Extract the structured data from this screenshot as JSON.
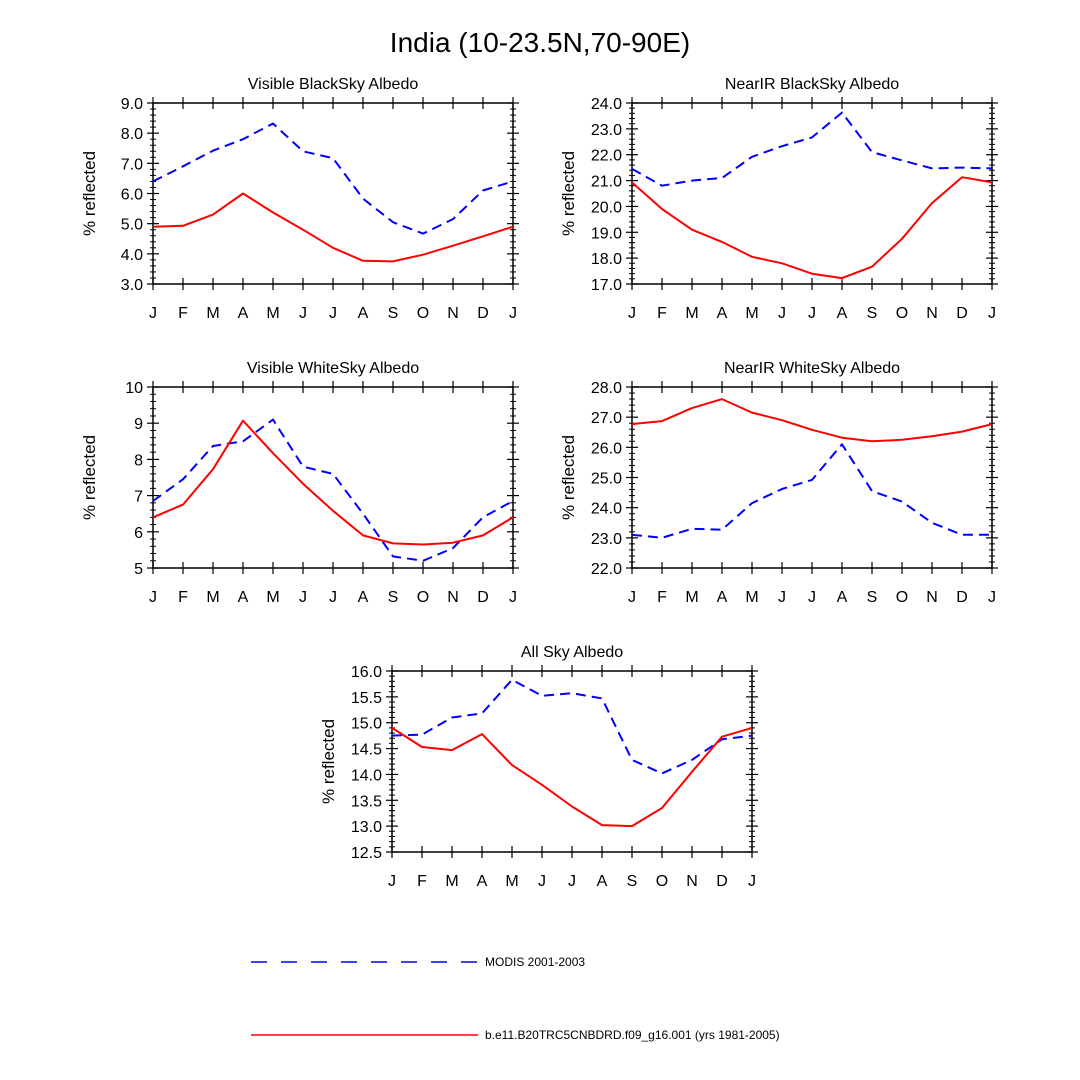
{
  "figure_title": "India (10-23.5N,70-90E)",
  "legend": [
    {
      "label": "MODIS 2001-2003",
      "color": "#0000ff",
      "style": "dashed"
    },
    {
      "label": "b.e11.B20TRC5CNBDRD.f09_g16.001 (yrs 1981-2005)",
      "color": "#ff0000",
      "style": "solid"
    }
  ],
  "chart_data": [
    {
      "type": "line",
      "title": "Visible BlackSky Albedo",
      "ylabel": "% reflected",
      "xlabel": "",
      "categories": [
        "J",
        "F",
        "M",
        "A",
        "M",
        "J",
        "J",
        "A",
        "S",
        "O",
        "N",
        "D",
        "J"
      ],
      "ylim": [
        3.0,
        9.0
      ],
      "yticks": [
        "3.0",
        "4.0",
        "5.0",
        "6.0",
        "7.0",
        "8.0",
        "9.0"
      ],
      "series": [
        {
          "name": "MODIS 2001-2003",
          "color": "#0000ff",
          "style": "dashed",
          "values": [
            6.4,
            6.9,
            7.42,
            7.8,
            8.32,
            7.4,
            7.17,
            5.83,
            5.05,
            4.67,
            5.15,
            6.1,
            6.4
          ]
        },
        {
          "name": "b.e11.B20TRC5CNBDRD.f09_g16.001 (yrs 1981-2005)",
          "color": "#ff0000",
          "style": "solid",
          "values": [
            4.9,
            4.93,
            5.3,
            6.0,
            5.37,
            4.8,
            4.2,
            3.77,
            3.75,
            3.97,
            4.27,
            4.58,
            4.9
          ]
        }
      ]
    },
    {
      "type": "line",
      "title": "NearIR BlackSky Albedo",
      "ylabel": "% reflected",
      "xlabel": "",
      "categories": [
        "J",
        "F",
        "M",
        "A",
        "M",
        "J",
        "J",
        "A",
        "S",
        "O",
        "N",
        "D",
        "J"
      ],
      "ylim": [
        17.0,
        24.0
      ],
      "yticks": [
        "17.0",
        "18.0",
        "19.0",
        "20.0",
        "21.0",
        "22.0",
        "23.0",
        "24.0"
      ],
      "series": [
        {
          "name": "MODIS 2001-2003",
          "color": "#0000ff",
          "style": "dashed",
          "values": [
            21.45,
            20.8,
            21.0,
            21.1,
            21.92,
            22.33,
            22.67,
            23.63,
            22.1,
            21.78,
            21.47,
            21.5,
            21.47
          ]
        },
        {
          "name": "b.e11.B20TRC5CNBDRD.f09_g16.001 (yrs 1981-2005)",
          "color": "#ff0000",
          "style": "solid",
          "values": [
            20.93,
            19.9,
            19.1,
            18.63,
            18.05,
            17.8,
            17.4,
            17.23,
            17.67,
            18.75,
            20.13,
            21.13,
            20.93
          ]
        }
      ]
    },
    {
      "type": "line",
      "title": "Visible WhiteSky Albedo",
      "ylabel": "% reflected",
      "xlabel": "",
      "categories": [
        "J",
        "F",
        "M",
        "A",
        "M",
        "J",
        "J",
        "A",
        "S",
        "O",
        "N",
        "D",
        "J"
      ],
      "ylim": [
        5,
        10
      ],
      "yticks": [
        "5",
        "6",
        "7",
        "8",
        "9",
        "10"
      ],
      "series": [
        {
          "name": "MODIS 2001-2003",
          "color": "#0000ff",
          "style": "dashed",
          "values": [
            6.85,
            7.45,
            8.37,
            8.5,
            9.1,
            7.8,
            7.6,
            6.5,
            5.32,
            5.2,
            5.55,
            6.4,
            6.85
          ]
        },
        {
          "name": "b.e11.B20TRC5CNBDRD.f09_g16.001 (yrs 1981-2005)",
          "color": "#ff0000",
          "style": "solid",
          "values": [
            6.4,
            6.75,
            7.73,
            9.07,
            8.17,
            7.33,
            6.58,
            5.9,
            5.68,
            5.65,
            5.7,
            5.9,
            6.4
          ]
        }
      ]
    },
    {
      "type": "line",
      "title": "NearIR WhiteSky Albedo",
      "ylabel": "% reflected",
      "xlabel": "",
      "categories": [
        "J",
        "F",
        "M",
        "A",
        "M",
        "J",
        "J",
        "A",
        "S",
        "O",
        "N",
        "D",
        "J"
      ],
      "ylim": [
        22.0,
        28.0
      ],
      "yticks": [
        "22.0",
        "23.0",
        "24.0",
        "25.0",
        "26.0",
        "27.0",
        "28.0"
      ],
      "series": [
        {
          "name": "MODIS 2001-2003",
          "color": "#0000ff",
          "style": "dashed",
          "values": [
            23.1,
            23.0,
            23.3,
            23.27,
            24.15,
            24.62,
            24.92,
            26.1,
            24.55,
            24.2,
            23.5,
            23.1,
            23.1
          ]
        },
        {
          "name": "b.e11.B20TRC5CNBDRD.f09_g16.001 (yrs 1981-2005)",
          "color": "#ff0000",
          "style": "solid",
          "values": [
            26.77,
            26.87,
            27.3,
            27.6,
            27.15,
            26.9,
            26.58,
            26.32,
            26.2,
            26.25,
            26.37,
            26.52,
            26.77
          ]
        }
      ]
    },
    {
      "type": "line",
      "title": "All Sky Albedo",
      "ylabel": "% reflected",
      "xlabel": "",
      "categories": [
        "J",
        "F",
        "M",
        "A",
        "M",
        "J",
        "J",
        "A",
        "S",
        "O",
        "N",
        "D",
        "J"
      ],
      "ylim": [
        12.5,
        16.0
      ],
      "yticks": [
        "12.5",
        "13.0",
        "13.5",
        "14.0",
        "14.5",
        "15.0",
        "15.5",
        "16.0"
      ],
      "series": [
        {
          "name": "MODIS 2001-2003",
          "color": "#0000ff",
          "style": "dashed",
          "values": [
            14.75,
            14.77,
            15.1,
            15.18,
            15.83,
            15.52,
            15.57,
            15.47,
            14.28,
            14.02,
            14.28,
            14.68,
            14.75
          ]
        },
        {
          "name": "b.e11.B20TRC5CNBDRD.f09_g16.001 (yrs 1981-2005)",
          "color": "#ff0000",
          "style": "solid",
          "values": [
            14.9,
            14.53,
            14.47,
            14.78,
            14.18,
            13.8,
            13.38,
            13.02,
            13.0,
            13.35,
            14.05,
            14.73,
            14.9
          ]
        }
      ]
    }
  ]
}
